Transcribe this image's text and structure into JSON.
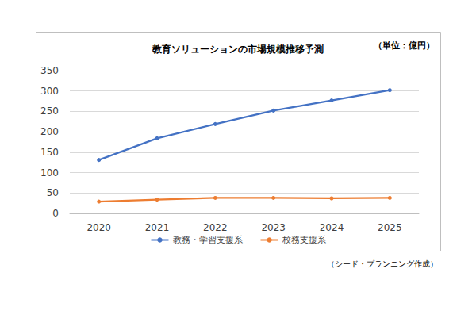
{
  "chart_data": {
    "type": "line",
    "title": "教育ソリューションの市場規模推移予測",
    "annotations": [
      "（単位：億円）",
      "（シード・プランニング作成）"
    ],
    "categories": [
      "2020",
      "2021",
      "2022",
      "2023",
      "2024",
      "2025"
    ],
    "series": [
      {
        "name": "教務・学習支援系",
        "color": "#4472c4",
        "values": [
          131,
          184,
          219,
          252,
          277,
          302
        ]
      },
      {
        "name": "校務支援系",
        "color": "#ed7d31",
        "values": [
          29,
          34,
          38,
          38,
          37,
          38
        ]
      }
    ],
    "ylim": [
      0,
      350
    ],
    "yticks": [
      0,
      50,
      100,
      150,
      200,
      250,
      300,
      350
    ],
    "grid": true,
    "legend": "bottom",
    "marker": "circle"
  }
}
